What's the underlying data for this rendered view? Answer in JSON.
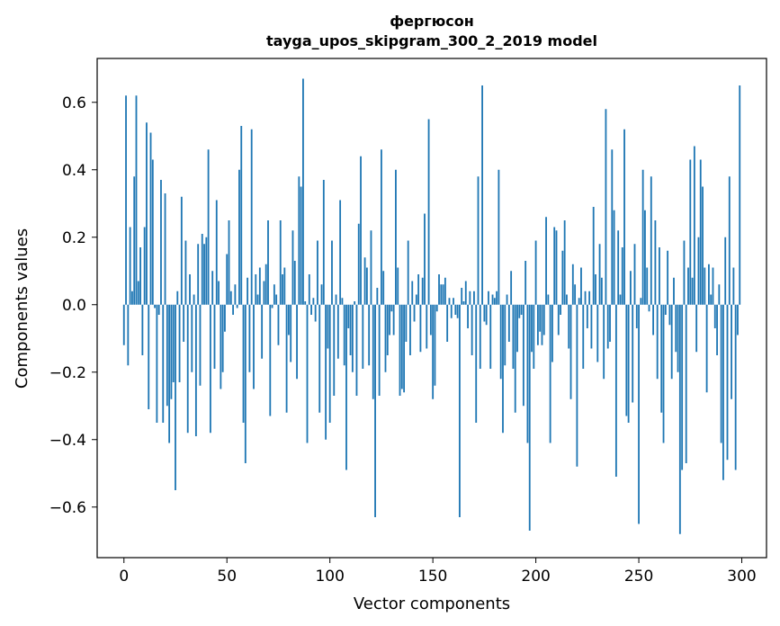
{
  "chart_data": {
    "type": "bar",
    "title": "фергюсон",
    "subtitle": "tayga_upos_skipgram_300_2_2019 model",
    "xlabel": "Vector components",
    "ylabel": "Components values",
    "xlim": [
      -13,
      312
    ],
    "ylim": [
      -0.75,
      0.73
    ],
    "x_ticks": [
      0,
      50,
      100,
      150,
      200,
      250,
      300
    ],
    "x_tick_labels": [
      "0",
      "50",
      "100",
      "150",
      "200",
      "250",
      "300"
    ],
    "y_ticks": [
      -0.6,
      -0.4,
      -0.2,
      0.0,
      0.2,
      0.4,
      0.6
    ],
    "y_tick_labels": [
      "−0.6",
      "−0.4",
      "−0.2",
      "0.0",
      "0.2",
      "0.4",
      "0.6"
    ],
    "bar_color": "#1f77b4",
    "grid": false,
    "values": [
      -0.12,
      0.62,
      -0.18,
      0.23,
      0.04,
      0.38,
      0.62,
      0.07,
      0.17,
      -0.15,
      0.23,
      0.54,
      -0.31,
      0.51,
      0.43,
      -0.01,
      -0.35,
      -0.03,
      0.37,
      -0.35,
      0.33,
      -0.3,
      -0.41,
      -0.28,
      -0.23,
      -0.55,
      0.04,
      -0.23,
      0.32,
      -0.11,
      0.19,
      -0.38,
      0.09,
      -0.2,
      0.03,
      -0.39,
      0.18,
      -0.24,
      0.21,
      0.18,
      0.2,
      0.46,
      -0.38,
      0.1,
      -0.19,
      0.31,
      0.07,
      -0.25,
      -0.2,
      -0.08,
      0.15,
      0.25,
      0.04,
      -0.03,
      0.06,
      -0.01,
      0.4,
      0.53,
      -0.35,
      -0.47,
      0.08,
      -0.2,
      0.52,
      -0.25,
      0.09,
      0.03,
      0.11,
      -0.16,
      0.07,
      0.12,
      0.25,
      -0.33,
      -0.01,
      0.06,
      0.03,
      -0.12,
      0.25,
      0.09,
      0.11,
      -0.32,
      -0.09,
      -0.17,
      0.22,
      0.13,
      -0.22,
      0.38,
      0.35,
      0.67,
      0.01,
      -0.41,
      0.09,
      -0.03,
      0.02,
      -0.05,
      0.19,
      -0.32,
      0.06,
      0.37,
      -0.4,
      -0.13,
      -0.35,
      0.19,
      -0.27,
      0.03,
      -0.16,
      0.31,
      0.02,
      -0.18,
      -0.49,
      -0.07,
      -0.15,
      -0.2,
      0.01,
      -0.27,
      0.24,
      0.44,
      -0.19,
      0.14,
      0.11,
      -0.18,
      0.22,
      -0.28,
      -0.63,
      0.05,
      -0.27,
      0.46,
      0.1,
      -0.2,
      -0.15,
      -0.09,
      -0.02,
      -0.09,
      0.4,
      0.11,
      -0.27,
      -0.25,
      -0.26,
      -0.11,
      0.19,
      -0.15,
      0.07,
      -0.05,
      0.03,
      0.09,
      -0.14,
      0.08,
      0.27,
      -0.13,
      0.55,
      -0.09,
      -0.28,
      -0.24,
      -0.02,
      0.09,
      0.06,
      0.06,
      0.08,
      -0.11,
      0.02,
      -0.04,
      0.02,
      -0.03,
      -0.04,
      -0.63,
      0.05,
      0.01,
      0.07,
      -0.07,
      0.04,
      -0.15,
      0.04,
      -0.35,
      0.38,
      -0.19,
      0.65,
      -0.05,
      -0.06,
      0.04,
      -0.19,
      0.03,
      0.02,
      0.04,
      0.4,
      -0.22,
      -0.38,
      -0.18,
      0.03,
      -0.11,
      0.1,
      -0.19,
      -0.32,
      -0.14,
      -0.04,
      -0.03,
      -0.3,
      0.13,
      -0.41,
      -0.67,
      -0.14,
      -0.19,
      0.19,
      -0.12,
      -0.08,
      -0.12,
      -0.09,
      0.26,
      0.03,
      -0.41,
      -0.17,
      0.23,
      0.22,
      -0.09,
      -0.03,
      0.16,
      0.25,
      0.03,
      -0.13,
      -0.28,
      0.12,
      0.06,
      -0.48,
      0.02,
      0.11,
      -0.19,
      0.04,
      -0.07,
      0.04,
      -0.13,
      0.29,
      0.09,
      -0.17,
      0.18,
      0.08,
      -0.22,
      0.58,
      -0.13,
      -0.11,
      0.46,
      0.28,
      -0.51,
      0.22,
      0.03,
      0.17,
      0.52,
      -0.33,
      -0.35,
      0.1,
      -0.29,
      0.18,
      -0.07,
      -0.65,
      0.02,
      0.4,
      0.28,
      0.11,
      -0.02,
      0.38,
      -0.09,
      0.25,
      -0.22,
      0.17,
      -0.32,
      -0.41,
      -0.03,
      0.16,
      -0.06,
      -0.22,
      0.08,
      -0.14,
      -0.2,
      -0.68,
      -0.49,
      0.19,
      -0.47,
      0.11,
      0.43,
      0.08,
      0.47,
      -0.14,
      0.2,
      0.43,
      0.35,
      0.11,
      -0.26,
      0.12,
      0.03,
      0.11,
      -0.07,
      -0.15,
      0.06,
      -0.41,
      -0.52,
      0.2,
      -0.46,
      0.38,
      -0.28,
      0.11,
      -0.49,
      -0.09,
      0.65
    ]
  }
}
